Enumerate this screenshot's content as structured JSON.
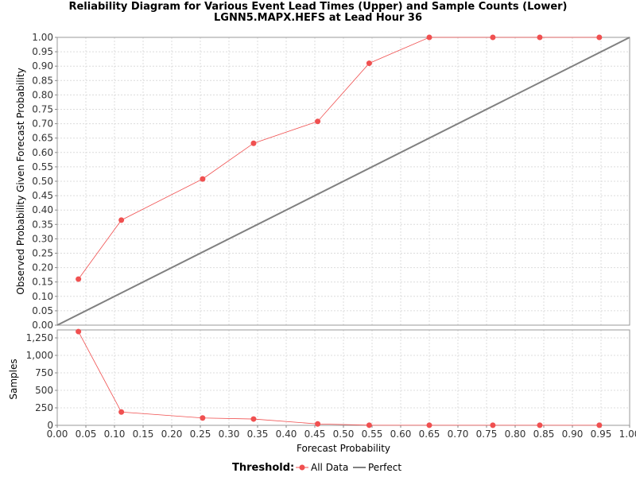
{
  "chart_data": {
    "title_line1": "Reliability Diagram for Various Event Lead Times (Upper) and Sample Counts (Lower)",
    "title_line2": "LGNN5.MAPX.HEFS at Lead Hour 36",
    "xlabel": "Forecast Probability",
    "upper": {
      "type": "line",
      "ylabel": "Observed Probability Given Forecast Probability",
      "xlim": [
        0,
        1
      ],
      "ylim": [
        0,
        1
      ],
      "yticks": [
        "0.00",
        "0.05",
        "0.10",
        "0.15",
        "0.20",
        "0.25",
        "0.30",
        "0.35",
        "0.40",
        "0.45",
        "0.50",
        "0.55",
        "0.60",
        "0.65",
        "0.70",
        "0.75",
        "0.80",
        "0.85",
        "0.90",
        "0.95",
        "1.00"
      ],
      "series": [
        {
          "name": "All Data",
          "color": "#f05050",
          "x": [
            0.037,
            0.112,
            0.254,
            0.343,
            0.455,
            0.545,
            0.65,
            0.761,
            0.843,
            0.947
          ],
          "y": [
            0.16,
            0.365,
            0.508,
            0.632,
            0.708,
            0.91,
            1.0,
            1.0,
            1.0,
            1.0
          ]
        },
        {
          "name": "Perfect",
          "color": "#808080",
          "x": [
            0,
            1
          ],
          "y": [
            0,
            1
          ]
        }
      ]
    },
    "lower": {
      "type": "line",
      "ylabel": "Samples",
      "xlim": [
        0,
        1
      ],
      "ylim": [
        0,
        1250
      ],
      "yticks": [
        "0",
        "250",
        "500",
        "750",
        "1,000",
        "1,250"
      ],
      "ytick_values": [
        0,
        250,
        500,
        750,
        1000,
        1250
      ],
      "series": [
        {
          "name": "All Data",
          "color": "#f05050",
          "x": [
            0.037,
            0.112,
            0.254,
            0.343,
            0.455,
            0.545,
            0.65,
            0.761,
            0.843,
            0.947
          ],
          "y": [
            1340,
            190,
            105,
            90,
            20,
            2,
            1,
            1,
            1,
            1
          ]
        }
      ]
    },
    "xticks": [
      "0.00",
      "0.05",
      "0.10",
      "0.15",
      "0.20",
      "0.25",
      "0.30",
      "0.35",
      "0.40",
      "0.45",
      "0.50",
      "0.55",
      "0.60",
      "0.65",
      "0.70",
      "0.75",
      "0.80",
      "0.85",
      "0.90",
      "0.95",
      "1.00"
    ],
    "legend": {
      "title": "Threshold:",
      "placement": "bottom-center",
      "entries": [
        "All Data",
        "Perfect"
      ]
    },
    "grid": true
  }
}
